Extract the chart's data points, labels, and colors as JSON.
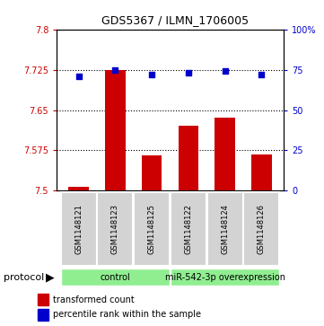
{
  "title": "GDS5367 / ILMN_1706005",
  "samples": [
    "GSM1148121",
    "GSM1148123",
    "GSM1148125",
    "GSM1148122",
    "GSM1148124",
    "GSM1148126"
  ],
  "transformed_counts": [
    7.508,
    7.725,
    7.565,
    7.62,
    7.635,
    7.568
  ],
  "percentile_ranks": [
    71,
    75,
    72,
    73,
    74,
    72
  ],
  "ylim_left": [
    7.5,
    7.8
  ],
  "ylim_right": [
    0,
    100
  ],
  "yticks_left": [
    7.5,
    7.575,
    7.65,
    7.725,
    7.8
  ],
  "yticks_right": [
    0,
    25,
    50,
    75,
    100
  ],
  "bar_color": "#cc0000",
  "dot_color": "#0000cc",
  "bar_base": 7.5,
  "group_ranges": [
    [
      0,
      2,
      "control"
    ],
    [
      3,
      5,
      "miR-542-3p overexpression"
    ]
  ],
  "group_color": "#90ee90",
  "sample_box_color": "#d3d3d3",
  "protocol_label": "protocol",
  "legend_bar_label": "transformed count",
  "legend_dot_label": "percentile rank within the sample",
  "title_fontsize": 9,
  "tick_fontsize": 7,
  "sample_fontsize": 6,
  "group_fontsize": 7,
  "legend_fontsize": 7
}
